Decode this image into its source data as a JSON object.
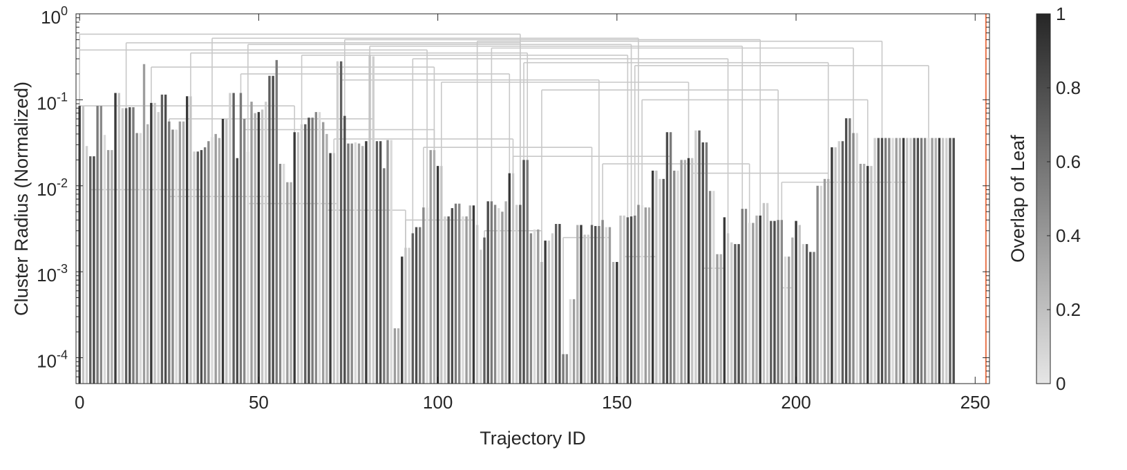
{
  "chart_data": {
    "type": "dendrogram",
    "title": "",
    "xlabel": "Trajectory ID",
    "ylabel": "Cluster Radius (Normalized)",
    "yscale": "log",
    "xlim": [
      -1,
      254
    ],
    "ylim": [
      5e-05,
      1
    ],
    "grid": false,
    "x_ticks": [
      0,
      50,
      100,
      150,
      200,
      250
    ],
    "x_tick_labels": [
      "0",
      "50",
      "100",
      "150",
      "200",
      "250"
    ],
    "y_ticks": [
      {
        "value": 0.0001,
        "base": "10",
        "exp": "-4"
      },
      {
        "value": 0.001,
        "base": "10",
        "exp": "-3"
      },
      {
        "value": 0.01,
        "base": "10",
        "exp": "-2"
      },
      {
        "value": 0.1,
        "base": "10",
        "exp": "-1"
      },
      {
        "value": 1,
        "base": "10",
        "exp": "0"
      }
    ],
    "colorbar": {
      "label": "Overlap of Leaf",
      "range": [
        0,
        1
      ],
      "ticks": [
        "0",
        "0.2",
        "0.4",
        "0.6",
        "0.8",
        "1"
      ],
      "color_low": "#e6e6e6",
      "color_high": "#262626"
    },
    "highlight_color": "#e8734a",
    "highlight_x": 253,
    "leaf_heights": [
      0.085,
      0.085,
      0.029,
      0.022,
      0.022,
      0.085,
      0.085,
      0.039,
      0.026,
      0.026,
      0.12,
      0.12,
      0.08,
      0.08,
      0.082,
      0.082,
      0.041,
      0.041,
      0.26,
      0.052,
      0.092,
      0.092,
      0.072,
      0.115,
      0.115,
      0.056,
      0.045,
      0.045,
      0.056,
      0.056,
      0.11,
      0.11,
      0.025,
      0.025,
      0.026,
      0.028,
      0.033,
      0.037,
      0.04,
      0.036,
      0.06,
      0.06,
      0.12,
      0.12,
      0.021,
      0.12,
      0.06,
      0.025,
      0.095,
      0.07,
      0.072,
      0.077,
      0.095,
      0.19,
      0.19,
      0.29,
      0.018,
      0.018,
      0.011,
      0.011,
      0.042,
      0.042,
      0.052,
      0.052,
      0.062,
      0.062,
      0.072,
      0.072,
      0.055,
      0.04,
      0.024,
      0.024,
      0.28,
      0.28,
      0.065,
      0.031,
      0.031,
      0.032,
      0.031,
      0.029,
      0.033,
      0.33,
      0.32,
      0.033,
      0.033,
      0.016,
      0.034,
      0.034,
      0.00022,
      0.00022,
      0.0015,
      0.0019,
      0.0019,
      0.0028,
      0.0033,
      0.0033,
      0.0056,
      0.0056,
      0.026,
      0.026,
      0.017,
      0.017,
      0.0044,
      0.0044,
      0.0055,
      0.0062,
      0.0062,
      0.0044,
      0.0044,
      0.0059,
      0.0059,
      0.0035,
      0.0018,
      0.0025,
      0.0066,
      0.0066,
      0.006,
      0.0055,
      0.005,
      0.0066,
      0.014,
      0.014,
      0.006,
      0.006,
      0.02,
      0.02,
      0.0028,
      0.0031,
      0.0031,
      0.0013,
      0.0023,
      0.0023,
      0.0028,
      0.0036,
      0.0036,
      0.00011,
      0.00011,
      0.00048,
      0.00048,
      0.0035,
      0.0035,
      0.0027,
      0.0027,
      0.0035,
      0.0034,
      0.0034,
      0.004,
      0.0033,
      0.0033,
      0.0013,
      0.0013,
      0.0045,
      0.0045,
      0.0043,
      0.0044,
      0.0045,
      0.006,
      0.006,
      0.0056,
      0.0056,
      0.015,
      0.015,
      0.012,
      0.012,
      0.042,
      0.042,
      0.015,
      0.015,
      0.02,
      0.02,
      0.021,
      0.021,
      0.044,
      0.044,
      0.032,
      0.032,
      0.0087,
      0.0087,
      0.0016,
      0.0016,
      0.0043,
      0.0028,
      0.0022,
      0.0021,
      0.0021,
      0.0054,
      0.0054,
      0.0037,
      0.0037,
      0.0045,
      0.0045,
      0.0063,
      0.0063,
      0.0039,
      0.0039,
      0.004,
      0.004,
      0.0015,
      0.0015,
      0.0025,
      0.0039,
      0.0035,
      0.0021,
      0.0021,
      0.0017,
      0.0017,
      0.01,
      0.01,
      0.012,
      0.012,
      0.028,
      0.028,
      0.033,
      0.033,
      0.061,
      0.061,
      0.041,
      0.041,
      0.018,
      0.018,
      0.017,
      0.017,
      0.036,
      0.036,
      0.036,
      0.036,
      0.036,
      0.036,
      0.036,
      0.036,
      0.036,
      0.036,
      0.036,
      0.036,
      0.036,
      0.036,
      0.036,
      0.036,
      0.036,
      0.036,
      0.036,
      0.036,
      0.036,
      0.036,
      0.036
    ],
    "merge_heights": [
      0.58,
      0.52,
      0.5,
      0.48,
      0.46,
      0.44,
      0.42,
      0.4,
      0.38,
      0.35,
      0.33,
      0.3,
      0.27,
      0.25,
      0.24,
      0.2,
      0.17,
      0.16,
      0.13,
      0.1,
      0.085,
      0.06,
      0.045,
      0.035,
      0.028,
      0.022,
      0.018,
      0.014,
      0.011,
      0.009,
      0.0075,
      0.0062,
      0.0052,
      0.004,
      0.003,
      0.0025,
      0.0015,
      0.0011,
      0.00065
    ]
  }
}
